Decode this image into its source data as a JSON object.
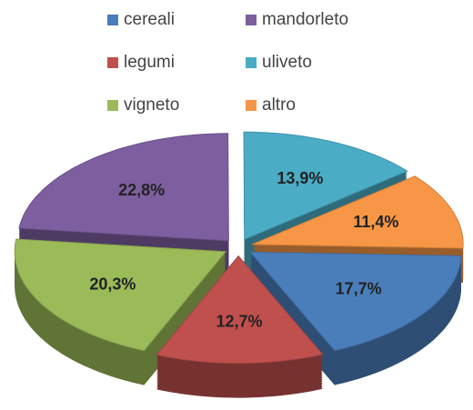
{
  "chart_data": {
    "type": "pie",
    "categories": [
      "cereali",
      "legumi",
      "vigneto",
      "mandorleto",
      "uliveto",
      "altro"
    ],
    "values": [
      17.7,
      12.7,
      20.3,
      22.8,
      13.9,
      11.4
    ],
    "value_labels": [
      "17,7%",
      "12,7%",
      "20,3%",
      "22,8%",
      "13,9%",
      "11,4%"
    ],
    "colors": [
      "#4a7ebb",
      "#c0504d",
      "#9bbb59",
      "#7d5fa0",
      "#4bacc6",
      "#f79646"
    ],
    "legend": "top"
  }
}
